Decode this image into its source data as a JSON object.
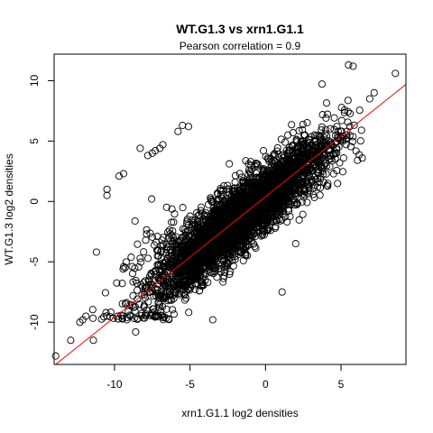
{
  "chart_data": {
    "type": "scatter",
    "title": "WT.G1.3 vs xrn1.G1.1",
    "subtitle_prefix": "Pearson correlation = ",
    "subtitle_value": "0.9",
    "xlabel": "xrn1.G1.1 log2 densities",
    "ylabel": "WT.G1.3 log2 densities",
    "xlim": [
      -14,
      9.3
    ],
    "ylim": [
      -13.5,
      12.2
    ],
    "xticks": [
      -10,
      -5,
      0,
      5
    ],
    "yticks": [
      -10,
      -5,
      0,
      5,
      10
    ],
    "xtick_labels": [
      "-10",
      "-5",
      "0",
      "5"
    ],
    "ytick_labels": [
      "-10",
      "-5",
      "0",
      "5",
      "10"
    ],
    "grid": false,
    "fit_line": {
      "slope": 1.0,
      "intercept": 0.4,
      "color": "#ff0000"
    },
    "point_color": "#000000",
    "outliers": [
      {
        "x": -13.9,
        "y": -12.8
      },
      {
        "x": -12.9,
        "y": -11.5
      },
      {
        "x": -12.3,
        "y": -10.0
      },
      {
        "x": -12.1,
        "y": -9.8
      },
      {
        "x": -11.9,
        "y": -9.5
      },
      {
        "x": -11.2,
        "y": -4.2
      },
      {
        "x": -10.5,
        "y": 0.5
      },
      {
        "x": -10.5,
        "y": 1.0
      },
      {
        "x": -9.7,
        "y": 2.1
      },
      {
        "x": -9.4,
        "y": 2.3
      },
      {
        "x": -8.3,
        "y": 4.4
      },
      {
        "x": -7.8,
        "y": 3.8
      },
      {
        "x": -7.5,
        "y": 4.0
      },
      {
        "x": -7.3,
        "y": 4.2
      },
      {
        "x": -7.0,
        "y": 4.4
      },
      {
        "x": -6.8,
        "y": 4.7
      },
      {
        "x": -5.8,
        "y": 5.8
      },
      {
        "x": -5.5,
        "y": 6.3
      },
      {
        "x": -5.1,
        "y": 6.2
      },
      {
        "x": -11.4,
        "y": -11.5
      },
      {
        "x": -8.6,
        "y": -10.8
      },
      {
        "x": 5.5,
        "y": 11.3
      },
      {
        "x": 5.8,
        "y": 11.2
      },
      {
        "x": 8.6,
        "y": 10.6
      },
      {
        "x": 7.2,
        "y": 9.0
      },
      {
        "x": 6.9,
        "y": 8.5
      },
      {
        "x": 1.1,
        "y": -7.5
      },
      {
        "x": 2.0,
        "y": -3.5
      },
      {
        "x": -3.5,
        "y": -9.8
      }
    ],
    "bulk_model": {
      "n": 3800,
      "x_mean": -1.8,
      "x_sd": 2.9,
      "x_range": [
        -11.5,
        6.5
      ],
      "slope": 0.97,
      "intercept": 0.3,
      "residual_sd": 1.35,
      "y_floor": -9.8
    }
  }
}
